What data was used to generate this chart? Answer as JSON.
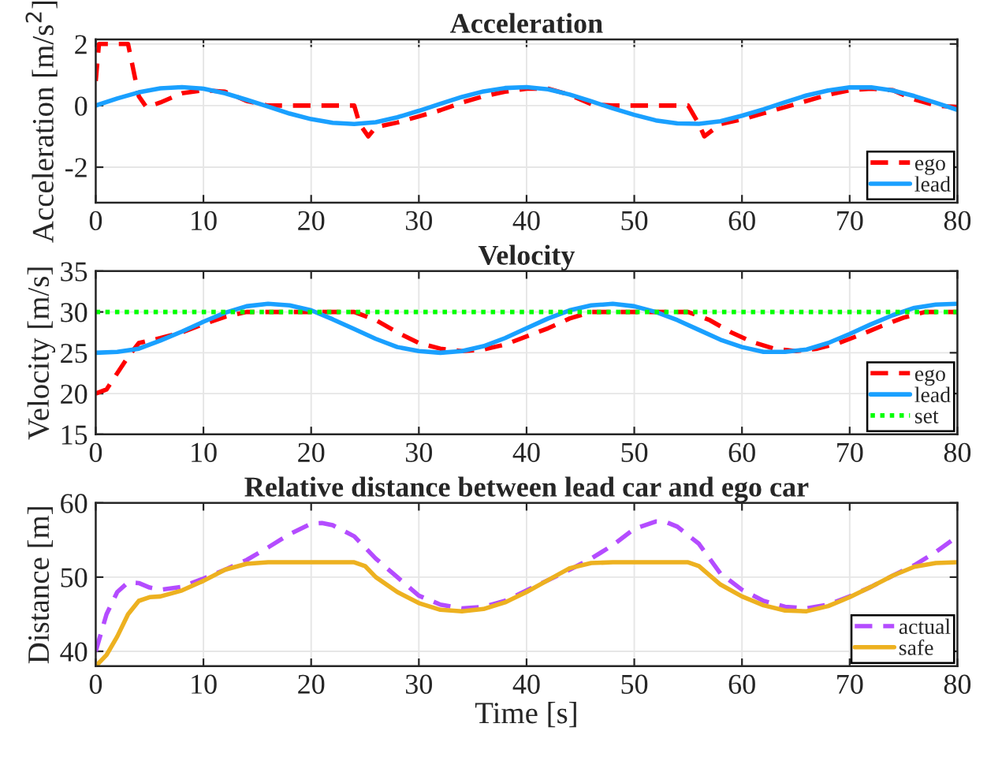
{
  "chart_data": [
    {
      "type": "line",
      "title": "Acceleration",
      "ylabel": "Acceleration [m/s$^{2}$]",
      "xlim": [
        0,
        80
      ],
      "xticks": [
        0,
        10,
        20,
        30,
        40,
        50,
        60,
        70,
        80
      ],
      "ylim": [
        -3.15,
        2.15
      ],
      "yticks": [
        -2,
        0,
        2
      ],
      "grid": true,
      "legend": "bottom right",
      "series": [
        {
          "name": "ego",
          "color": "#ff0000",
          "line_style": "dashed",
          "x": [
            0,
            0.3,
            1,
            2,
            3,
            4,
            4.7,
            6,
            8,
            10,
            12,
            14,
            16,
            18,
            20,
            22,
            24,
            24.5,
            25.3,
            26,
            28,
            30,
            32,
            34,
            36,
            38,
            40,
            42,
            44,
            46,
            48,
            50,
            52,
            54,
            55,
            56,
            56.5,
            58,
            60,
            62,
            64,
            66,
            68,
            70,
            72,
            74,
            76,
            78,
            80
          ],
          "values": [
            0.8,
            2,
            2,
            2,
            2,
            0.3,
            -0.05,
            0.1,
            0.4,
            0.5,
            0.45,
            0.15,
            0,
            0,
            0,
            0,
            0,
            -0.6,
            -1.0,
            -0.7,
            -0.55,
            -0.35,
            -0.15,
            0.1,
            0.3,
            0.45,
            0.55,
            0.55,
            0.35,
            0.05,
            0,
            0,
            0,
            0,
            0,
            -0.6,
            -1.0,
            -0.6,
            -0.45,
            -0.25,
            -0.05,
            0.15,
            0.35,
            0.5,
            0.55,
            0.5,
            0.2,
            0,
            -0.05
          ]
        },
        {
          "name": "lead",
          "color": "#1aa0ff",
          "line_style": "solid",
          "x": [
            0,
            2,
            4,
            6,
            8,
            10,
            12,
            14,
            16,
            18,
            20,
            22,
            24,
            26,
            28,
            30,
            32,
            34,
            36,
            38,
            40,
            42,
            44,
            46,
            48,
            50,
            52,
            54,
            56,
            58,
            60,
            62,
            64,
            66,
            68,
            70,
            72,
            74,
            76,
            78,
            80
          ],
          "values": [
            0,
            0.23,
            0.43,
            0.56,
            0.6,
            0.55,
            0.4,
            0.19,
            -0.03,
            -0.26,
            -0.44,
            -0.56,
            -0.6,
            -0.54,
            -0.38,
            -0.17,
            0.06,
            0.28,
            0.46,
            0.57,
            0.6,
            0.53,
            0.36,
            0.14,
            -0.09,
            -0.3,
            -0.48,
            -0.58,
            -0.59,
            -0.51,
            -0.33,
            -0.12,
            0.11,
            0.33,
            0.49,
            0.59,
            0.59,
            0.49,
            0.31,
            0.09,
            -0.14
          ]
        }
      ]
    },
    {
      "type": "line",
      "title": "Velocity",
      "ylabel": "Velocity [m/s]",
      "xlim": [
        0,
        80
      ],
      "xticks": [
        0,
        10,
        20,
        30,
        40,
        50,
        60,
        70,
        80
      ],
      "ylim": [
        15,
        35
      ],
      "yticks": [
        15,
        20,
        25,
        30,
        35
      ],
      "grid": true,
      "legend": "bottom right",
      "series": [
        {
          "name": "ego",
          "color": "#ff0000",
          "line_style": "dashed",
          "x": [
            0,
            1,
            2,
            3,
            4,
            6,
            8,
            10,
            12,
            14,
            16,
            20,
            24,
            26,
            28,
            30,
            32,
            34,
            36,
            38,
            40,
            42,
            44,
            46,
            50,
            55,
            57,
            59,
            61,
            63,
            65,
            67,
            69,
            71,
            73,
            75,
            77,
            80
          ],
          "values": [
            20,
            20.5,
            22.5,
            24.5,
            26.2,
            26.8,
            27.5,
            28.5,
            29.4,
            30,
            30,
            30,
            30,
            29,
            27.5,
            26.2,
            25.5,
            25.2,
            25.4,
            26,
            27,
            28,
            29.2,
            30,
            30,
            30,
            29,
            27.5,
            26.3,
            25.5,
            25.2,
            25.5,
            26.2,
            27.2,
            28.3,
            29.3,
            30,
            30
          ]
        },
        {
          "name": "lead",
          "color": "#1aa0ff",
          "line_style": "solid",
          "x": [
            0,
            2,
            4,
            6,
            8,
            10,
            12,
            14,
            16,
            18,
            20,
            22,
            24,
            26,
            28,
            30,
            32,
            34,
            36,
            38,
            40,
            42,
            44,
            46,
            48,
            50,
            52,
            54,
            56,
            58,
            60,
            62,
            64,
            66,
            68,
            70,
            72,
            74,
            76,
            78,
            80
          ],
          "values": [
            25,
            25.1,
            25.5,
            26.5,
            27.6,
            28.8,
            29.9,
            30.7,
            31,
            30.8,
            30.2,
            29.1,
            27.9,
            26.7,
            25.7,
            25.2,
            25,
            25.2,
            25.8,
            26.8,
            28,
            29.2,
            30.2,
            30.8,
            31,
            30.7,
            30,
            29,
            27.8,
            26.6,
            25.7,
            25.1,
            25.1,
            25.4,
            26.2,
            27.3,
            28.5,
            29.6,
            30.5,
            30.9,
            31
          ]
        },
        {
          "name": "set",
          "color": "#00ff00",
          "line_style": "dotted",
          "x": [
            0,
            80
          ],
          "values": [
            30,
            30
          ]
        }
      ]
    },
    {
      "type": "line",
      "title": "Relative distance between lead car and ego car",
      "xlabel": "Time [s]",
      "ylabel": "Distance [m]",
      "xlim": [
        0,
        80
      ],
      "xticks": [
        0,
        10,
        20,
        30,
        40,
        50,
        60,
        70,
        80
      ],
      "ylim": [
        38,
        60
      ],
      "yticks": [
        40,
        50,
        60
      ],
      "grid": true,
      "legend": "bottom right",
      "series": [
        {
          "name": "actual",
          "color": "#b44cff",
          "line_style": "dashed",
          "x": [
            0,
            1,
            2,
            3,
            4,
            5,
            6,
            8,
            10,
            12,
            14,
            16,
            18,
            20,
            21,
            22,
            24,
            26,
            28,
            30,
            32,
            34,
            36,
            38,
            40,
            42,
            44,
            46,
            48,
            50,
            52,
            53,
            54,
            56,
            58,
            60,
            62,
            64,
            66,
            68,
            70,
            72,
            74,
            76,
            78,
            80
          ],
          "values": [
            40,
            45,
            48,
            49.3,
            49.2,
            48.6,
            48.3,
            48.7,
            49.8,
            51,
            52.3,
            54,
            55.8,
            57.2,
            57.3,
            57,
            55.5,
            52.5,
            50,
            47.5,
            46.3,
            45.8,
            46,
            46.8,
            48.2,
            49.6,
            51,
            52.5,
            54.3,
            56.5,
            57.5,
            57.4,
            56.8,
            54.5,
            50.5,
            48.3,
            46.8,
            46,
            45.8,
            46.3,
            47.4,
            48.7,
            50.2,
            51.6,
            53.4,
            55.5
          ]
        },
        {
          "name": "safe",
          "color": "#edb120",
          "line_style": "solid",
          "x": [
            0,
            1,
            2,
            3,
            4,
            5,
            6,
            8,
            10,
            12,
            14,
            16,
            20,
            24,
            25,
            26,
            28,
            30,
            32,
            34,
            36,
            38,
            40,
            42,
            44,
            46,
            48,
            52,
            55,
            56,
            58,
            60,
            62,
            64,
            66,
            68,
            70,
            72,
            74,
            76,
            78,
            80
          ],
          "values": [
            38,
            39.5,
            42,
            45,
            46.8,
            47.3,
            47.4,
            48.2,
            49.5,
            51,
            51.8,
            52,
            52,
            52,
            51.5,
            50,
            48,
            46.5,
            45.6,
            45.4,
            45.7,
            46.6,
            48,
            49.6,
            51.2,
            51.9,
            52,
            52,
            52,
            51.5,
            49,
            47.4,
            46.2,
            45.5,
            45.4,
            46.1,
            47.3,
            48.7,
            50.2,
            51.4,
            51.9,
            52
          ]
        }
      ]
    }
  ]
}
